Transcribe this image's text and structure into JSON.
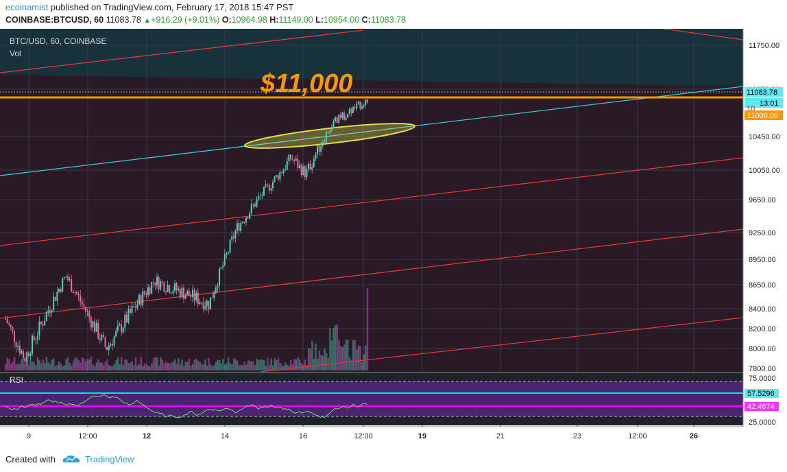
{
  "header": {
    "author": "ecoinamist",
    "published": "published on TradingView.com, February 17, 2018 15:47 PST",
    "symbol": "COINBASE:BTCUSD, 60",
    "last": "11083.78",
    "change": "+916.29 (+9.01%)",
    "o_label": "O:",
    "o": "10964.98",
    "h_label": "H:",
    "h": "11149.00",
    "l_label": "L:",
    "l": "10954.00",
    "c_label": "C:",
    "c": "11083.78"
  },
  "legend": {
    "title": "BTC/USD, 60, COINBASE",
    "vol": "Vol",
    "rsi": "RSI"
  },
  "annotation": {
    "text": "$11,000",
    "color": "#ff9800"
  },
  "colors": {
    "bg_dark": "#2a1a26",
    "bg_upper": "#1a2a33",
    "bull": "#4fd1b5",
    "bear": "#e86ba0",
    "channel": "#e23a3a",
    "trend": "#3ac8d8",
    "level": "#ff9800",
    "ellipse": "#d8e04a",
    "rsi_line": "#6ee06e",
    "rsi_band": "#5a2a8a",
    "rsi_cyan": "#00e5ff",
    "rsi_magenta": "#ff00ff"
  },
  "price_axis": {
    "ticks": [
      "11750.00",
      "11250.00",
      "10450.00",
      "10050.00",
      "9650.00",
      "9250.00",
      "8950.00",
      "8650.00",
      "8400.00",
      "8200.00",
      "8000.00",
      "7800.00"
    ],
    "tags": {
      "last": "11083.78",
      "countdown": "13:01",
      "level": "11000.00",
      "partial": "10"
    }
  },
  "rsi_axis": {
    "ticks": [
      "75.0000",
      "25.0000"
    ],
    "tags": {
      "high": "57.5296",
      "low": "42.4674"
    }
  },
  "time_axis": {
    "labels": [
      "9",
      "12:00",
      "12",
      "14",
      "16",
      "12:00",
      "19",
      "21",
      "23",
      "12:00",
      "26"
    ],
    "bold": [
      false,
      false,
      true,
      false,
      false,
      false,
      true,
      false,
      false,
      false,
      true
    ]
  },
  "chart_data": {
    "type": "candlestick",
    "title": "BTC/USD, 60, COINBASE",
    "price_range": [
      7800,
      11850
    ],
    "horizontal_level": 11000,
    "last_price": 11083.78,
    "rsi_levels": [
      75,
      25
    ],
    "rsi_bands": [
      57.5296,
      42.4674
    ],
    "price_path_keypoints": [
      {
        "time": "Feb 8 (start)",
        "price": 8300
      },
      {
        "time": "Feb 9",
        "price": 7900
      },
      {
        "time": "Feb 10",
        "price": 8750
      },
      {
        "time": "Feb 11",
        "price": 8000
      },
      {
        "time": "Feb 12",
        "price": 8700
      },
      {
        "time": "Feb 13",
        "price": 8450
      },
      {
        "time": "Feb 14",
        "price": 9300
      },
      {
        "time": "Feb 15",
        "price": 10200
      },
      {
        "time": "Feb 16",
        "price": 10000
      },
      {
        "time": "Feb 16 12:00",
        "price": 10700
      },
      {
        "time": "Feb 17",
        "price": 11083.78
      }
    ]
  },
  "footer": {
    "created": "Created with",
    "brand": "TradingView"
  }
}
